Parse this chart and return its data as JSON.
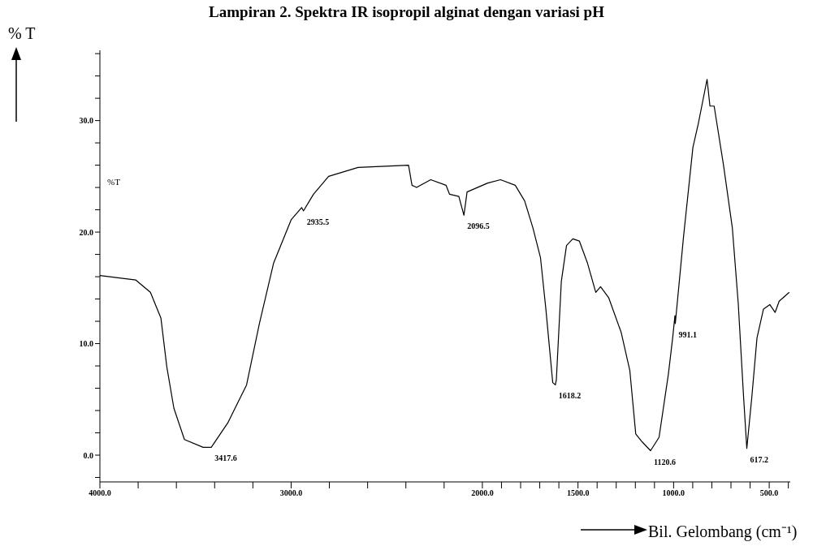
{
  "chart_data": {
    "type": "line",
    "title": "Lampiran 2. Spektra IR isopropil alginat dengan variasi pH",
    "xlabel": "Bil. Gelombang (cm⁻¹)",
    "ylabel": "% T",
    "x": [
      4000,
      3812,
      3736,
      3681,
      3650,
      3613,
      3558,
      3460,
      3417.6,
      3331,
      3233,
      3166,
      3092,
      3000,
      2945,
      2935.5,
      2883,
      2804,
      2650,
      2386,
      2368,
      2344,
      2270,
      2190,
      2172,
      2123,
      2096.5,
      2080,
      1972,
      1905,
      1828,
      1779,
      1736,
      1696,
      1668,
      1632,
      1618.2,
      1613,
      1587,
      1560,
      1527,
      1493,
      1450,
      1407,
      1382,
      1339,
      1274,
      1229,
      1198,
      1165,
      1120.6,
      1076,
      1027,
      1005,
      993,
      991.1,
      948,
      899,
      871,
      825,
      810,
      788,
      739,
      693,
      662,
      634,
      617.2,
      591,
      564,
      530,
      497,
      469,
      448,
      395
    ],
    "series": [
      {
        "color": "#000000",
        "values": [
          16.1,
          15.7,
          14.6,
          12.3,
          7.9,
          4.2,
          1.4,
          0.7,
          0.7,
          2.9,
          6.3,
          11.8,
          17.2,
          21.1,
          22.2,
          21.9,
          23.4,
          25.0,
          25.8,
          26.0,
          24.2,
          24.0,
          24.7,
          24.2,
          23.4,
          23.2,
          21.5,
          23.6,
          24.4,
          24.7,
          24.2,
          22.8,
          20.4,
          17.7,
          13.1,
          6.5,
          6.3,
          6.8,
          15.6,
          18.8,
          19.4,
          19.2,
          17.2,
          14.6,
          15.1,
          14.1,
          11.0,
          7.6,
          1.9,
          1.2,
          0.4,
          1.6,
          7.3,
          10.5,
          12.5,
          11.8,
          19.6,
          27.6,
          29.7,
          33.7,
          31.3,
          31.3,
          26.0,
          20.4,
          13.6,
          5.2,
          0.6,
          5.2,
          10.5,
          13.1,
          13.5,
          12.8,
          13.8,
          14.6
        ]
      }
    ],
    "marker": "none",
    "line_style": "solid",
    "xlim": [
      4000,
      390
    ],
    "xticks": [
      {
        "value": 4000,
        "label": "4000.0"
      },
      {
        "value": 3800,
        "label": null
      },
      {
        "value": 3600,
        "label": null
      },
      {
        "value": 3400,
        "label": null
      },
      {
        "value": 3200,
        "label": null
      },
      {
        "value": 3000,
        "label": "3000.0"
      },
      {
        "value": 2800,
        "label": null
      },
      {
        "value": 2600,
        "label": null
      },
      {
        "value": 2400,
        "label": null
      },
      {
        "value": 2200,
        "label": null
      },
      {
        "value": 2000,
        "label": "2000.0"
      },
      {
        "value": 1900,
        "label": null
      },
      {
        "value": 1800,
        "label": null
      },
      {
        "value": 1700,
        "label": null
      },
      {
        "value": 1600,
        "label": null
      },
      {
        "value": 1500,
        "label": "1500.0"
      },
      {
        "value": 1400,
        "label": null
      },
      {
        "value": 1300,
        "label": null
      },
      {
        "value": 1200,
        "label": null
      },
      {
        "value": 1100,
        "label": null
      },
      {
        "value": 1000,
        "label": "1000.0"
      },
      {
        "value": 900,
        "label": null
      },
      {
        "value": 800,
        "label": null
      },
      {
        "value": 700,
        "label": null
      },
      {
        "value": 600,
        "label": null
      },
      {
        "value": 500,
        "label": "500.0"
      },
      {
        "value": 400,
        "label": null
      }
    ],
    "ylim": [
      -2.4,
      36.3
    ],
    "yticks": [
      {
        "value": -2,
        "label": null
      },
      {
        "value": 0,
        "label": "0.0"
      },
      {
        "value": 2,
        "label": null
      },
      {
        "value": 4,
        "label": null
      },
      {
        "value": 6,
        "label": null
      },
      {
        "value": 8,
        "label": null
      },
      {
        "value": 10,
        "label": "10.0"
      },
      {
        "value": 12,
        "label": null
      },
      {
        "value": 14,
        "label": null
      },
      {
        "value": 16,
        "label": null
      },
      {
        "value": 18,
        "label": null
      },
      {
        "value": 20,
        "label": "20.0"
      },
      {
        "value": 22,
        "label": null
      },
      {
        "value": 24,
        "label": null
      },
      {
        "value": 26,
        "label": null
      },
      {
        "value": 28,
        "label": null
      },
      {
        "value": 30,
        "label": "30.0"
      },
      {
        "value": 32,
        "label": null
      },
      {
        "value": 34,
        "label": null
      },
      {
        "value": 36,
        "label": null
      }
    ],
    "annotations": [
      "%T",
      {
        "text": "3417.6",
        "x": 3417.6,
        "y": 0.7
      },
      {
        "text": "2935.5",
        "x": 2935.5,
        "y": 21.9
      },
      {
        "text": "2096.5",
        "x": 2096.5,
        "y": 21.5
      },
      {
        "text": "1618.2",
        "x": 1618.2,
        "y": 6.3
      },
      {
        "text": "1120.6",
        "x": 1120.6,
        "y": 0.4
      },
      {
        "text": "991.1",
        "x": 991.1,
        "y": 11.8
      },
      {
        "text": "617.2",
        "x": 617.2,
        "y": 0.6
      }
    ]
  }
}
